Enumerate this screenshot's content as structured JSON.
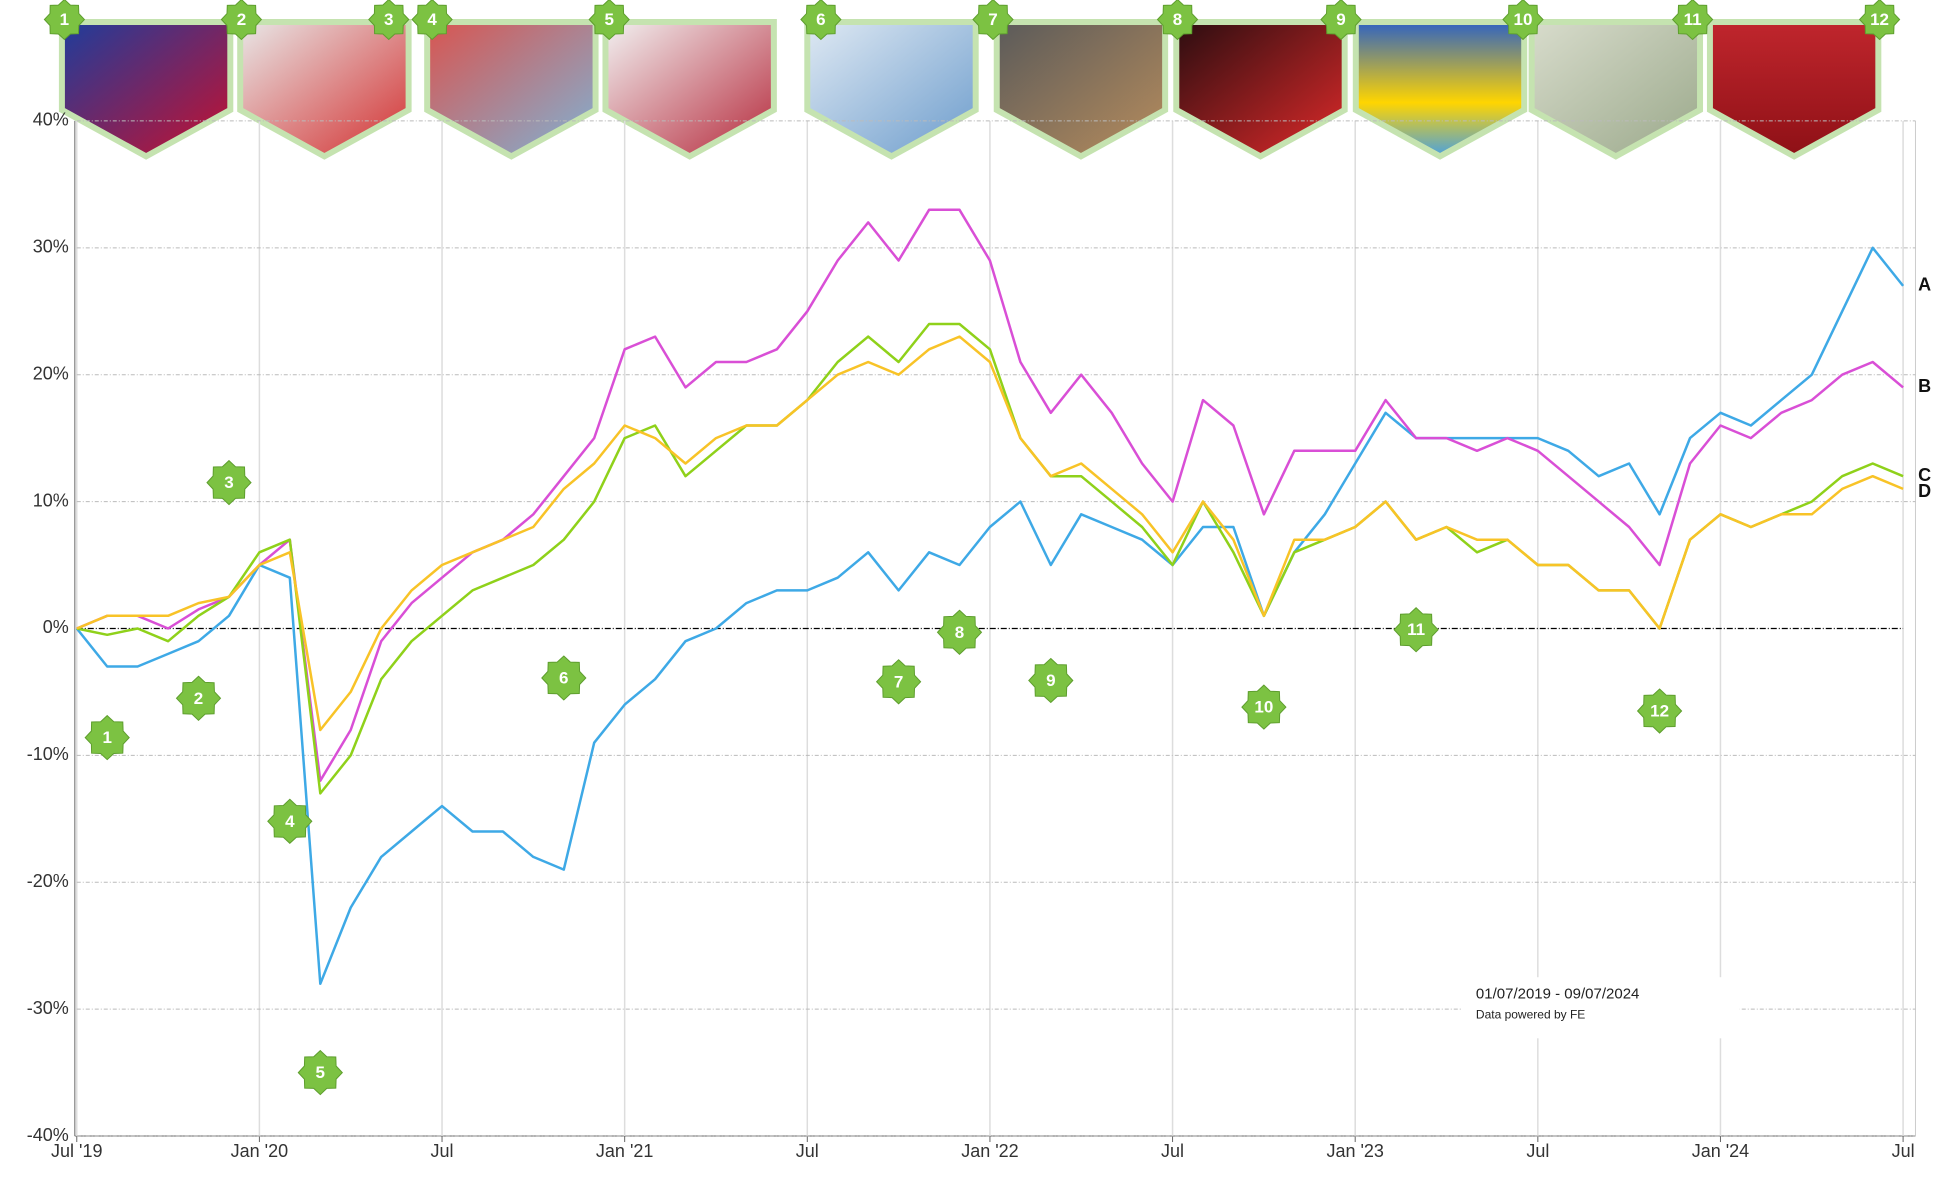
{
  "chart_data": {
    "type": "line",
    "x": [
      "2019-07",
      "2019-08",
      "2019-09",
      "2019-10",
      "2019-11",
      "2019-12",
      "2020-01",
      "2020-02",
      "2020-03",
      "2020-04",
      "2020-05",
      "2020-06",
      "2020-07",
      "2020-08",
      "2020-09",
      "2020-10",
      "2020-11",
      "2020-12",
      "2021-01",
      "2021-02",
      "2021-03",
      "2021-04",
      "2021-05",
      "2021-06",
      "2021-07",
      "2021-08",
      "2021-09",
      "2021-10",
      "2021-11",
      "2021-12",
      "2022-01",
      "2022-02",
      "2022-03",
      "2022-04",
      "2022-05",
      "2022-06",
      "2022-07",
      "2022-08",
      "2022-09",
      "2022-10",
      "2022-11",
      "2022-12",
      "2023-01",
      "2023-02",
      "2023-03",
      "2023-04",
      "2023-05",
      "2023-06",
      "2023-07",
      "2023-08",
      "2023-09",
      "2023-10",
      "2023-11",
      "2023-12",
      "2024-01",
      "2024-02",
      "2024-03",
      "2024-04",
      "2024-05",
      "2024-06",
      "2024-07"
    ],
    "series": [
      {
        "name": "A",
        "color": "#3ea9e6",
        "values": [
          0,
          -3,
          -3,
          -2,
          -1,
          1,
          5,
          4,
          -28,
          -22,
          -18,
          -16,
          -14,
          -16,
          -16,
          -18,
          -19,
          -9,
          -6,
          -4,
          -1,
          0,
          2,
          3,
          3,
          4,
          6,
          3,
          6,
          5,
          8,
          10,
          5,
          9,
          8,
          7,
          5,
          8,
          8,
          1,
          6,
          9,
          13,
          17,
          15,
          15,
          15,
          15,
          15,
          14,
          12,
          13,
          9,
          15,
          17,
          16,
          18,
          20,
          25,
          30,
          27
        ]
      },
      {
        "name": "B",
        "color": "#d94fd6",
        "values": [
          0,
          1,
          1,
          0,
          1.5,
          2.5,
          5,
          7,
          -12,
          -8,
          -1,
          2,
          4,
          6,
          7,
          9,
          12,
          15,
          22,
          23,
          19,
          21,
          21,
          22,
          25,
          29,
          32,
          29,
          33,
          33,
          29,
          21,
          17,
          20,
          17,
          13,
          10,
          18,
          16,
          9,
          14,
          14,
          14,
          18,
          15,
          15,
          14,
          15,
          14,
          12,
          10,
          8,
          5,
          13,
          16,
          15,
          17,
          18,
          20,
          21,
          19
        ]
      },
      {
        "name": "C",
        "color": "#8fd11a",
        "values": [
          0,
          -0.5,
          0,
          -1,
          1,
          2.5,
          6,
          7,
          -13,
          -10,
          -4,
          -1,
          1,
          3,
          4,
          5,
          7,
          10,
          15,
          16,
          12,
          14,
          16,
          16,
          18,
          21,
          23,
          21,
          24,
          24,
          22,
          15,
          12,
          12,
          10,
          8,
          5,
          10,
          6,
          1,
          6,
          7,
          8,
          10,
          7,
          8,
          6,
          7,
          5,
          5,
          3,
          3,
          0,
          7,
          9,
          8,
          9,
          10,
          12,
          13,
          12
        ]
      },
      {
        "name": "D",
        "color": "#f8c327",
        "values": [
          0,
          1,
          1,
          1,
          2,
          2.5,
          5,
          6,
          -8,
          -5,
          0,
          3,
          5,
          6,
          7,
          8,
          11,
          13,
          16,
          15,
          13,
          15,
          16,
          16,
          18,
          20,
          21,
          20,
          22,
          23,
          21,
          15,
          12,
          13,
          11,
          9,
          6,
          10,
          7,
          1,
          7,
          7,
          8,
          10,
          7,
          8,
          7,
          7,
          5,
          5,
          3,
          3,
          0,
          7,
          9,
          8,
          9,
          9,
          11,
          12,
          11
        ]
      }
    ],
    "xlim": [
      "2019-07",
      "2024-07"
    ],
    "xticks": [
      {
        "value": "2019-07",
        "label": "Jul '19"
      },
      {
        "value": "2020-01",
        "label": "Jan '20"
      },
      {
        "value": "2020-07",
        "label": "Jul"
      },
      {
        "value": "2021-01",
        "label": "Jan '21"
      },
      {
        "value": "2021-07",
        "label": "Jul"
      },
      {
        "value": "2022-01",
        "label": "Jan '22"
      },
      {
        "value": "2022-07",
        "label": "Jul"
      },
      {
        "value": "2023-01",
        "label": "Jan '23"
      },
      {
        "value": "2023-07",
        "label": "Jul"
      },
      {
        "value": "2024-01",
        "label": "Jan '24"
      },
      {
        "value": "2024-07",
        "label": "Jul"
      }
    ],
    "ylim": [
      -40,
      40
    ],
    "yticks": [
      {
        "value": -40,
        "label": "-40%"
      },
      {
        "value": -30,
        "label": "-30%"
      },
      {
        "value": -20,
        "label": "-20%"
      },
      {
        "value": -10,
        "label": "-10%"
      },
      {
        "value": 0,
        "label": "0%"
      },
      {
        "value": 10,
        "label": "10%"
      },
      {
        "value": 20,
        "label": "20%"
      },
      {
        "value": 30,
        "label": "30%"
      },
      {
        "value": 40,
        "label": "40%"
      }
    ],
    "grid": true,
    "annotations": [
      {
        "label": "1",
        "x": "2019-08",
        "y": -8.6
      },
      {
        "label": "2",
        "x": "2019-11",
        "y": -5.5
      },
      {
        "label": "3",
        "x": "2019-12",
        "y": 11.5
      },
      {
        "label": "4",
        "x": "2020-02",
        "y": -15.2
      },
      {
        "label": "5",
        "x": "2020-03",
        "y": -35
      },
      {
        "label": "6",
        "x": "2020-11",
        "y": -3.9
      },
      {
        "label": "7",
        "x": "2021-10",
        "y": -4.2
      },
      {
        "label": "8",
        "x": "2021-12",
        "y": -0.3
      },
      {
        "label": "9",
        "x": "2022-03",
        "y": -4.1
      },
      {
        "label": "10",
        "x": "2022-10",
        "y": -6.2
      },
      {
        "label": "11",
        "x": "2023-03",
        "y": -0.1
      },
      {
        "label": "12",
        "x": "2023-11",
        "y": -6.5
      }
    ],
    "date_range": "01/07/2019 - 09/07/2024",
    "source": "Data powered by FE"
  }
}
